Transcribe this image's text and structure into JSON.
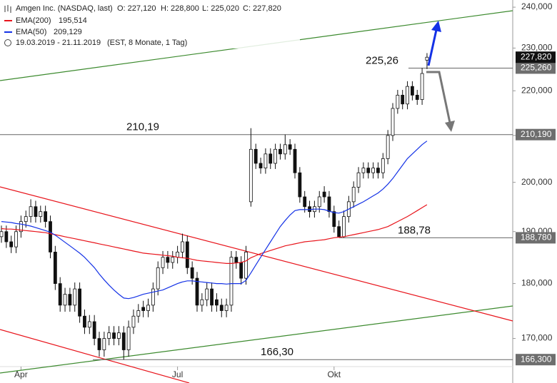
{
  "header": {
    "title": "Amgen Inc. (NASDAQ, last)",
    "open": "O: 227,120",
    "high": "H: 228,800",
    "low": "L: 225,020",
    "close": "C: 227,820",
    "range": "19.03.2019 - 21.11.2019",
    "info": "(EST, 8 Monate, 1 Tag)"
  },
  "chart_data": {
    "type": "candlestick",
    "log": true,
    "ylim": [
      162.3,
      241.8
    ],
    "yticks": [
      {
        "value": 170,
        "label": "170,000"
      },
      {
        "value": 180,
        "label": "180,000"
      },
      {
        "value": 190,
        "label": "190,000"
      },
      {
        "value": 200,
        "label": "200,000"
      },
      {
        "value": 210,
        "label": "210,000"
      },
      {
        "value": 220,
        "label": "220,000"
      },
      {
        "value": 230,
        "label": "230,000"
      },
      {
        "value": 240,
        "label": "240,000"
      }
    ],
    "categories": [
      null,
      null,
      null,
      null,
      "Apr",
      null,
      null,
      null,
      null,
      null,
      null,
      null,
      null,
      null,
      null,
      null,
      null,
      null,
      null,
      null,
      null,
      null,
      null,
      null,
      null,
      null,
      null,
      null,
      null,
      null,
      null,
      null,
      null,
      null,
      null,
      null,
      "Jul",
      null,
      null,
      null,
      null,
      null,
      null,
      null,
      null,
      null,
      null,
      null,
      null,
      null,
      null,
      null,
      null,
      null,
      null,
      null,
      null,
      null,
      null,
      null,
      null,
      null,
      null,
      null,
      null,
      null,
      null,
      null,
      "Okt",
      null,
      null,
      null,
      null,
      null,
      null,
      null,
      null,
      null,
      null,
      null,
      null,
      null,
      null,
      null,
      null,
      null,
      null,
      null
    ],
    "ohlc": {
      "open": [
        189,
        190,
        188,
        187,
        190,
        192,
        193,
        195,
        193,
        194,
        192,
        186,
        180,
        176,
        178,
        176,
        179,
        174,
        172,
        173,
        170,
        168,
        170,
        171,
        170,
        171,
        168,
        172,
        174,
        175.6,
        175,
        176,
        179,
        183,
        185,
        184,
        185,
        186,
        188,
        183,
        181,
        176,
        177,
        179,
        177,
        176,
        175,
        176,
        185,
        184,
        181,
        196,
        207,
        204,
        203,
        206,
        204,
        207,
        206,
        208,
        207,
        202,
        197,
        195,
        194,
        195,
        198,
        197,
        194,
        191,
        189,
        193,
        196,
        199,
        202,
        203,
        202,
        203,
        202,
        205,
        210,
        216,
        219,
        217,
        221,
        219,
        218,
        227.12
      ],
      "high": [
        191.2,
        191.2,
        189.2,
        191.2,
        193.2,
        194.2,
        196.5,
        196.2,
        195.2,
        195.2,
        193.2,
        187.2,
        181.2,
        179.2,
        179.2,
        180.2,
        180.2,
        175.2,
        174.2,
        174.2,
        171.2,
        171.2,
        172.2,
        172.2,
        172.2,
        172.2,
        173.2,
        175.2,
        176.2,
        176.8,
        177.2,
        180.2,
        184.2,
        186.2,
        186.2,
        186.2,
        187.2,
        189.6,
        189.2,
        184.2,
        182.2,
        178.2,
        180.2,
        180.2,
        178.2,
        177.2,
        177.2,
        186.2,
        186.2,
        185.2,
        187.2,
        211.6,
        208.2,
        205.2,
        207.2,
        207.2,
        208.2,
        208.2,
        210.2,
        209.2,
        208.2,
        203.2,
        198.2,
        196.2,
        196.2,
        198.2,
        199.2,
        198.2,
        195.2,
        192.2,
        194.2,
        197.2,
        200.2,
        203.2,
        204.2,
        204.2,
        204.2,
        204.2,
        206.2,
        211.2,
        217.2,
        220.2,
        220.2,
        222.2,
        222.2,
        220.2,
        225.3,
        228.8
      ],
      "low": [
        187.8,
        186.8,
        185.8,
        185.8,
        188.8,
        190.8,
        191.8,
        191.8,
        191.8,
        190.8,
        184.8,
        178.8,
        174.8,
        174.8,
        174.8,
        174.8,
        172.8,
        170.8,
        170.8,
        168.8,
        166.8,
        166.8,
        168.8,
        168.8,
        168.8,
        166.3,
        166.8,
        170.8,
        172.8,
        173.8,
        173.8,
        174.8,
        177.8,
        181.8,
        182.8,
        182.8,
        183.8,
        184.8,
        181.8,
        179.8,
        174.8,
        174.8,
        175.8,
        174.8,
        174.8,
        173.8,
        173.8,
        174.8,
        182.8,
        179.8,
        179.8,
        195,
        202.8,
        201.8,
        201.8,
        202.8,
        202.8,
        204.8,
        204.8,
        205.8,
        200.8,
        195.8,
        193.8,
        192.8,
        192.8,
        193.8,
        195.8,
        192.8,
        189.8,
        188.8,
        188.8,
        191.8,
        194.8,
        197.8,
        200.8,
        200.8,
        200.8,
        200.8,
        200.8,
        203.8,
        208.8,
        214.8,
        215.8,
        215.8,
        217.8,
        216.8,
        216.8,
        225.02
      ],
      "close": [
        190,
        188,
        187,
        190,
        192,
        193,
        195,
        193,
        194,
        192,
        186,
        180,
        176,
        178,
        176,
        179,
        174,
        172,
        173,
        170,
        168,
        170,
        171,
        170,
        171,
        168,
        172,
        174,
        175,
        175,
        176,
        179,
        183,
        185,
        184,
        185,
        186,
        188,
        183,
        181,
        176,
        177,
        179,
        176,
        176,
        175,
        176,
        185,
        184,
        181,
        186,
        207,
        204,
        203,
        206,
        204,
        207,
        206,
        208,
        207,
        202,
        197,
        195,
        194,
        195,
        197,
        197,
        194,
        191,
        189,
        193,
        196,
        199,
        202,
        203,
        202,
        203,
        202,
        205,
        210,
        216,
        219,
        217,
        221,
        219,
        218,
        224,
        227.82
      ]
    },
    "series": [
      {
        "name": "EMA(200)",
        "color": "#e8141b",
        "last_label": "195,514",
        "values": [
          190.6,
          190.5,
          190.5,
          190.4,
          190.3,
          190.2,
          190.1,
          190.0,
          189.9,
          189.8,
          189.6,
          189.4,
          189.2,
          189.0,
          188.8,
          188.6,
          188.4,
          188.2,
          188.0,
          187.8,
          187.6,
          187.4,
          187.2,
          187.0,
          186.8,
          186.6,
          186.4,
          186.2,
          186.0,
          185.8,
          185.7,
          185.6,
          185.5,
          185.4,
          185.3,
          185.2,
          185.0,
          184.9,
          184.8,
          184.6,
          184.4,
          184.3,
          184.2,
          184.1,
          184.0,
          183.9,
          183.8,
          183.8,
          183.9,
          184.0,
          184.3,
          184.9,
          185.3,
          185.7,
          186.0,
          186.3,
          186.6,
          186.9,
          187.2,
          187.4,
          187.6,
          187.8,
          188.0,
          188.1,
          188.2,
          188.3,
          188.4,
          188.6,
          188.8,
          188.9,
          189.0,
          189.2,
          189.4,
          189.6,
          189.8,
          190.0,
          190.2,
          190.4,
          190.7,
          191.0,
          191.5,
          192.0,
          192.5,
          193.0,
          193.6,
          194.2,
          194.8,
          195.4
        ]
      },
      {
        "name": "EMA(50)",
        "color": "#1432e6",
        "last_label": "209,129",
        "values": [
          192.0,
          191.9,
          191.8,
          191.6,
          191.5,
          191.3,
          191.1,
          190.8,
          190.5,
          190.2,
          189.9,
          189.3,
          188.6,
          187.9,
          187.2,
          186.5,
          185.8,
          185.0,
          184.0,
          183.0,
          181.8,
          180.7,
          179.7,
          178.8,
          178.0,
          177.3,
          177.2,
          177.4,
          177.7,
          178.0,
          178.2,
          178.4,
          178.6,
          178.8,
          179.2,
          179.6,
          180.0,
          180.3,
          180.5,
          180.5,
          180.4,
          180.3,
          180.2,
          180.1,
          180.0,
          180.0,
          179.9,
          180.0,
          180.0,
          180.0,
          180.6,
          182.0,
          183.5,
          185.0,
          186.5,
          188.0,
          189.5,
          191.0,
          192.2,
          193.3,
          194.2,
          194.4,
          194.4,
          194.4,
          194.5,
          194.5,
          194.4,
          194.1,
          193.8,
          193.7,
          194.0,
          194.5,
          195.0,
          195.5,
          196.0,
          196.6,
          197.2,
          197.8,
          198.6,
          199.6,
          200.8,
          202.2,
          203.6,
          205.0,
          206.0,
          207.0,
          208.0,
          208.8
        ]
      }
    ],
    "levels": [
      {
        "value": 225.26,
        "label": "225,26",
        "tag": "225,260"
      },
      {
        "value": 210.19,
        "label": "210,19",
        "tag": "210,190"
      },
      {
        "value": 188.78,
        "label": "188,78",
        "tag": "188,780"
      },
      {
        "value": 166.3,
        "label": "166,30",
        "tag": "166,300"
      }
    ],
    "last_price": {
      "value": 227.82,
      "label": "227,820"
    }
  }
}
